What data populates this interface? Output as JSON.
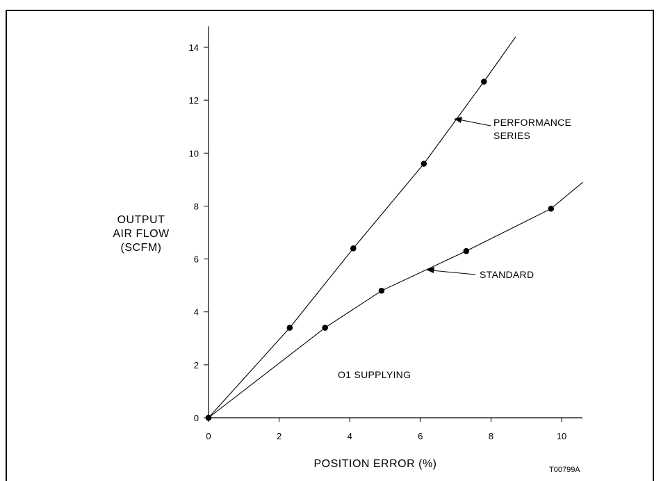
{
  "chart_data": {
    "type": "line",
    "title": "",
    "xlabel": "POSITION ERROR (%)",
    "ylabel": [
      "OUTPUT",
      "AIR FLOW",
      "(SCFM)"
    ],
    "xlim": [
      0,
      10
    ],
    "ylim": [
      0,
      14
    ],
    "xticks": [
      0,
      2,
      4,
      6,
      8,
      10
    ],
    "yticks": [
      0,
      2,
      4,
      6,
      8,
      10,
      12,
      14
    ],
    "grid": false,
    "series": [
      {
        "name": "PERFORMANCE SERIES",
        "points": [
          [
            0,
            0
          ],
          [
            2.3,
            3.4
          ],
          [
            4.1,
            6.4
          ],
          [
            6.1,
            9.6
          ],
          [
            7.8,
            12.7
          ]
        ],
        "line_end": [
          8.7,
          14.4
        ]
      },
      {
        "name": "STANDARD",
        "points": [
          [
            0,
            0
          ],
          [
            3.3,
            3.4
          ],
          [
            4.9,
            4.8
          ],
          [
            7.3,
            6.3
          ],
          [
            9.7,
            7.9
          ]
        ],
        "line_end": [
          10.6,
          8.9
        ]
      }
    ],
    "annotations": {
      "performance_label": [
        "PERFORMANCE",
        "SERIES"
      ],
      "standard_label": "STANDARD",
      "supply_note": "O1 SUPPLYING",
      "figure_code": "T00799A"
    }
  }
}
